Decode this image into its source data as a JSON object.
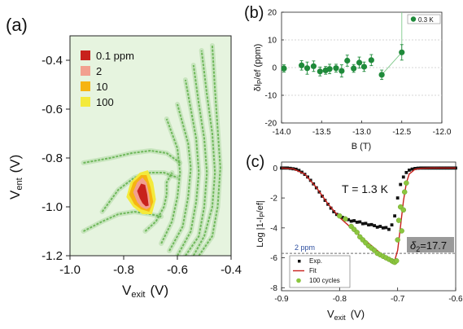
{
  "chart_data": [
    {
      "panel": "(a)",
      "type": "heatmap",
      "xlabel": "V",
      "xlabel_sub": "exit",
      "xlabel_unit": "(V)",
      "ylabel": "V",
      "ylabel_sub": "ent",
      "ylabel_unit": "(V)",
      "xlim": [
        -1.0,
        -0.4
      ],
      "ylim": [
        -1.2,
        -0.3
      ],
      "xticks": [
        "-1.0",
        "-0.8",
        "-0.6",
        "-0.4"
      ],
      "xtick_values": [
        -1.0,
        -0.8,
        -0.6,
        -0.4
      ],
      "yticks": [
        "-0.4",
        "-0.6",
        "-0.8",
        "-1.0",
        "-1.2"
      ],
      "ytick_values": [
        -0.4,
        -0.6,
        -0.8,
        -1.0,
        -1.2
      ],
      "legend": [
        {
          "label": "0.1 ppm",
          "color": "#c8211c"
        },
        {
          "label": "2",
          "color": "#f2a08f"
        },
        {
          "label": "10",
          "color": "#f6b412"
        },
        {
          "label": "100",
          "color": "#f3ea3c"
        }
      ],
      "background_color": "#e6f4df",
      "plateau_color": "#5fb04a",
      "plateau_curves": [
        {
          "x": [
            -0.88,
            -0.82,
            -0.76,
            -0.7,
            -0.65,
            -0.6
          ],
          "y": [
            -1.02,
            -0.93,
            -0.88,
            -0.86,
            -0.86,
            -0.88
          ]
        },
        {
          "x": [
            -0.95,
            -0.85,
            -0.77,
            -0.7,
            -0.64,
            -0.59
          ],
          "y": [
            -0.82,
            -0.8,
            -0.78,
            -0.77,
            -0.78,
            -0.82
          ]
        },
        {
          "x": [
            -0.72,
            -0.68,
            -0.65,
            -0.64,
            -0.64,
            -0.62
          ],
          "y": [
            -1.1,
            -1.06,
            -1.0,
            -0.95,
            -0.9,
            -0.86
          ]
        },
        {
          "x": [
            -0.95,
            -0.88,
            -0.82,
            -0.76,
            -0.7,
            -0.66
          ],
          "y": [
            -1.1,
            -1.06,
            -1.03,
            -1.02,
            -1.03,
            -1.04
          ]
        },
        {
          "x": [
            -0.66,
            -0.62,
            -0.6,
            -0.59,
            -0.6,
            -0.62,
            -0.64
          ],
          "y": [
            -1.15,
            -1.06,
            -0.96,
            -0.86,
            -0.76,
            -0.7,
            -0.64
          ]
        },
        {
          "x": [
            -0.63,
            -0.58,
            -0.56,
            -0.55,
            -0.56,
            -0.58,
            -0.6
          ],
          "y": [
            -1.18,
            -1.08,
            -0.96,
            -0.84,
            -0.74,
            -0.66,
            -0.58
          ]
        },
        {
          "x": [
            -0.6,
            -0.55,
            -0.53,
            -0.52,
            -0.53,
            -0.55,
            -0.57
          ],
          "y": [
            -1.2,
            -1.1,
            -0.98,
            -0.86,
            -0.72,
            -0.6,
            -0.48
          ]
        },
        {
          "x": [
            -0.57,
            -0.52,
            -0.5,
            -0.49,
            -0.5,
            -0.52,
            -0.54
          ],
          "y": [
            -1.2,
            -1.12,
            -1.0,
            -0.86,
            -0.72,
            -0.58,
            -0.42
          ]
        },
        {
          "x": [
            -0.54,
            -0.5,
            -0.47,
            -0.46,
            -0.47,
            -0.49,
            -0.51
          ],
          "y": [
            -1.2,
            -1.12,
            -1.0,
            -0.86,
            -0.7,
            -0.54,
            -0.36
          ]
        },
        {
          "x": [
            -0.52,
            -0.47,
            -0.45,
            -0.44,
            -0.45,
            -0.46,
            -0.47
          ],
          "y": [
            -1.2,
            -1.12,
            -1.0,
            -0.84,
            -0.68,
            -0.52,
            -0.34
          ]
        }
      ],
      "blobs": [
        {
          "color": "#f3ea3c",
          "points": [
            [
              -0.765,
              -1.0
            ],
            [
              -0.79,
              -0.96
            ],
            [
              -0.775,
              -0.9
            ],
            [
              -0.74,
              -0.86
            ],
            [
              -0.71,
              -0.85
            ],
            [
              -0.69,
              -0.9
            ],
            [
              -0.68,
              -0.97
            ],
            [
              -0.695,
              -1.03
            ],
            [
              -0.73,
              -1.03
            ]
          ]
        },
        {
          "color": "#f6b412",
          "points": [
            [
              -0.76,
              -0.99
            ],
            [
              -0.78,
              -0.95
            ],
            [
              -0.765,
              -0.9
            ],
            [
              -0.735,
              -0.87
            ],
            [
              -0.715,
              -0.87
            ],
            [
              -0.7,
              -0.92
            ],
            [
              -0.69,
              -0.98
            ],
            [
              -0.705,
              -1.02
            ],
            [
              -0.735,
              -1.01
            ]
          ]
        },
        {
          "color": "#f2a08f",
          "points": [
            [
              -0.75,
              -0.98
            ],
            [
              -0.765,
              -0.94
            ],
            [
              -0.75,
              -0.9
            ],
            [
              -0.73,
              -0.88
            ],
            [
              -0.715,
              -0.9
            ],
            [
              -0.705,
              -0.95
            ],
            [
              -0.7,
              -1.0
            ],
            [
              -0.715,
              -1.01
            ],
            [
              -0.735,
              -1.0
            ]
          ]
        },
        {
          "color": "#c8211c",
          "points": [
            [
              -0.74,
              -0.965
            ],
            [
              -0.75,
              -0.935
            ],
            [
              -0.735,
              -0.905
            ],
            [
              -0.72,
              -0.91
            ],
            [
              -0.712,
              -0.95
            ],
            [
              -0.707,
              -0.995
            ],
            [
              -0.718,
              -0.998
            ],
            [
              -0.73,
              -0.985
            ]
          ]
        }
      ]
    },
    {
      "panel": "(b)",
      "type": "scatter",
      "xlabel": "B (T)",
      "ylabel": "δI",
      "ylabel_sub": "P",
      "ylabel_rest": "/ef (ppm)",
      "xlim": [
        -14.0,
        -12.0
      ],
      "ylim": [
        -20,
        20
      ],
      "xticks": [
        "-14.0",
        "-13.5",
        "-13.0",
        "-12.5",
        "-12.0"
      ],
      "xtick_values": [
        -14.0,
        -13.5,
        -13.0,
        -12.5,
        -12.0
      ],
      "yticks": [
        "-20",
        "-10",
        "0",
        "10",
        "20"
      ],
      "ytick_values": [
        -20,
        -10,
        0,
        10,
        20
      ],
      "grid": true,
      "legend_position": "top-right",
      "series": [
        {
          "name": "0.3 K",
          "color": "#1f8a3a",
          "x": [
            -13.97,
            -13.75,
            -13.68,
            -13.6,
            -13.52,
            -13.45,
            -13.4,
            -13.32,
            -13.25,
            -13.18,
            -13.1,
            -13.03,
            -12.97,
            -12.88,
            -12.75,
            -12.5
          ],
          "y": [
            -0.3,
            0.8,
            -0.2,
            0.5,
            -1.4,
            -1.0,
            -0.5,
            -0.2,
            -1.2,
            2.5,
            -0.3,
            1.8,
            0.3,
            2.7,
            -2.6,
            5.5
          ],
          "err": [
            1.3,
            1.7,
            2.2,
            1.9,
            1.6,
            1.4,
            1.7,
            1.4,
            2.2,
            2.0,
            1.4,
            2.0,
            1.7,
            2.0,
            1.7,
            2.8
          ]
        }
      ],
      "tail_line": {
        "x": [
          -12.75,
          -12.5,
          -12.5
        ],
        "y": [
          -2.6,
          5.5,
          20
        ]
      }
    },
    {
      "panel": "(c)",
      "type": "scatter",
      "annotation": "T = 1.3 K",
      "xlabel": "V",
      "xlabel_sub": "exit",
      "xlabel_unit": "(V)",
      "ylabel": "Log |1-I",
      "ylabel_sub": "P",
      "ylabel_rest": "/ef|",
      "xlim": [
        -0.9,
        -0.6
      ],
      "ylim": [
        -8.2,
        0.4
      ],
      "xticks": [
        "-0.9",
        "-0.8",
        "-0.7",
        "-0.6"
      ],
      "xtick_values": [
        -0.9,
        -0.8,
        -0.7,
        -0.6
      ],
      "yticks": [
        "0",
        "-2",
        "-4",
        "-6",
        "-8"
      ],
      "ytick_values": [
        0,
        -2,
        -4,
        -6,
        -8
      ],
      "reference_line": {
        "label": "2 ppm",
        "y": -5.7,
        "color": "#6e6e6e",
        "label_color": "#2e4fa0"
      },
      "delta_label": "δ",
      "delta_sub": "2",
      "delta_value": "=17.7",
      "legend_position": "bottom-left",
      "series": [
        {
          "name": "Exp.",
          "marker": "square",
          "color": "#111111",
          "x": [
            -0.9,
            -0.895,
            -0.89,
            -0.885,
            -0.88,
            -0.875,
            -0.87,
            -0.865,
            -0.86,
            -0.855,
            -0.85,
            -0.845,
            -0.84,
            -0.835,
            -0.83,
            -0.825,
            -0.82,
            -0.815,
            -0.81,
            -0.805,
            -0.8,
            -0.795,
            -0.79,
            -0.785,
            -0.78,
            -0.775,
            -0.77,
            -0.765,
            -0.76,
            -0.755,
            -0.75,
            -0.745,
            -0.74,
            -0.735,
            -0.73,
            -0.725,
            -0.72,
            -0.715,
            -0.71,
            -0.705,
            -0.7,
            -0.695,
            -0.69,
            -0.685,
            -0.68,
            -0.675,
            -0.67,
            -0.665,
            -0.66,
            -0.655,
            -0.65,
            -0.645,
            -0.64,
            -0.635,
            -0.63,
            -0.625,
            -0.62,
            -0.615,
            -0.61,
            -0.605,
            -0.6
          ],
          "y": [
            0,
            0,
            0,
            -0.02,
            -0.05,
            -0.08,
            -0.16,
            -0.28,
            -0.42,
            -0.6,
            -0.82,
            -1.06,
            -1.32,
            -1.6,
            -1.88,
            -2.16,
            -2.42,
            -2.68,
            -2.92,
            -3.1,
            -3.22,
            -3.3,
            -3.42,
            -3.45,
            -3.55,
            -3.52,
            -3.62,
            -3.6,
            -3.72,
            -3.7,
            -3.8,
            -3.78,
            -3.85,
            -3.95,
            -3.9,
            -4.0,
            -3.98,
            -4.1,
            -3.8,
            -3.2,
            -2.0,
            -1.1,
            -0.6,
            -0.3,
            -0.14,
            -0.07,
            -0.03,
            -0.01,
            0,
            0,
            0,
            0,
            0,
            0,
            0,
            0,
            0,
            0,
            0,
            0,
            0
          ]
        },
        {
          "name": "Fit",
          "marker": "line",
          "color": "#c8211c",
          "x": [
            -0.9,
            -0.88,
            -0.86,
            -0.84,
            -0.82,
            -0.8,
            -0.78,
            -0.76,
            -0.74,
            -0.72,
            -0.706,
            -0.7,
            -0.695,
            -0.69,
            -0.685,
            -0.68,
            -0.67,
            -0.66,
            -0.64,
            -0.62,
            -0.6
          ],
          "y": [
            0,
            -0.05,
            -0.4,
            -1.3,
            -2.4,
            -3.3,
            -4.0,
            -4.7,
            -5.35,
            -6.0,
            -6.3,
            -5.5,
            -3.9,
            -2.2,
            -1.0,
            -0.4,
            -0.08,
            -0.02,
            0,
            0,
            0
          ]
        },
        {
          "name": "100 cycles",
          "marker": "circle",
          "color": "#8cc63f",
          "x": [
            -0.8,
            -0.79,
            -0.78,
            -0.775,
            -0.77,
            -0.765,
            -0.76,
            -0.755,
            -0.75,
            -0.745,
            -0.74,
            -0.735,
            -0.73,
            -0.725,
            -0.72,
            -0.715,
            -0.71,
            -0.708,
            -0.705,
            -0.702,
            -0.7,
            -0.698,
            -0.695,
            -0.693,
            -0.69,
            -0.688,
            -0.685
          ],
          "y": [
            -3.2,
            -3.4,
            -3.9,
            -4.1,
            -4.3,
            -4.6,
            -4.8,
            -5.0,
            -5.2,
            -5.35,
            -5.5,
            -5.7,
            -5.8,
            -5.9,
            -6.0,
            -6.1,
            -6.2,
            -6.25,
            -6.3,
            -6.2,
            -4.8,
            -3.5,
            -2.6,
            -4.2,
            -2.8,
            -1.6,
            -1.0
          ]
        }
      ]
    }
  ]
}
